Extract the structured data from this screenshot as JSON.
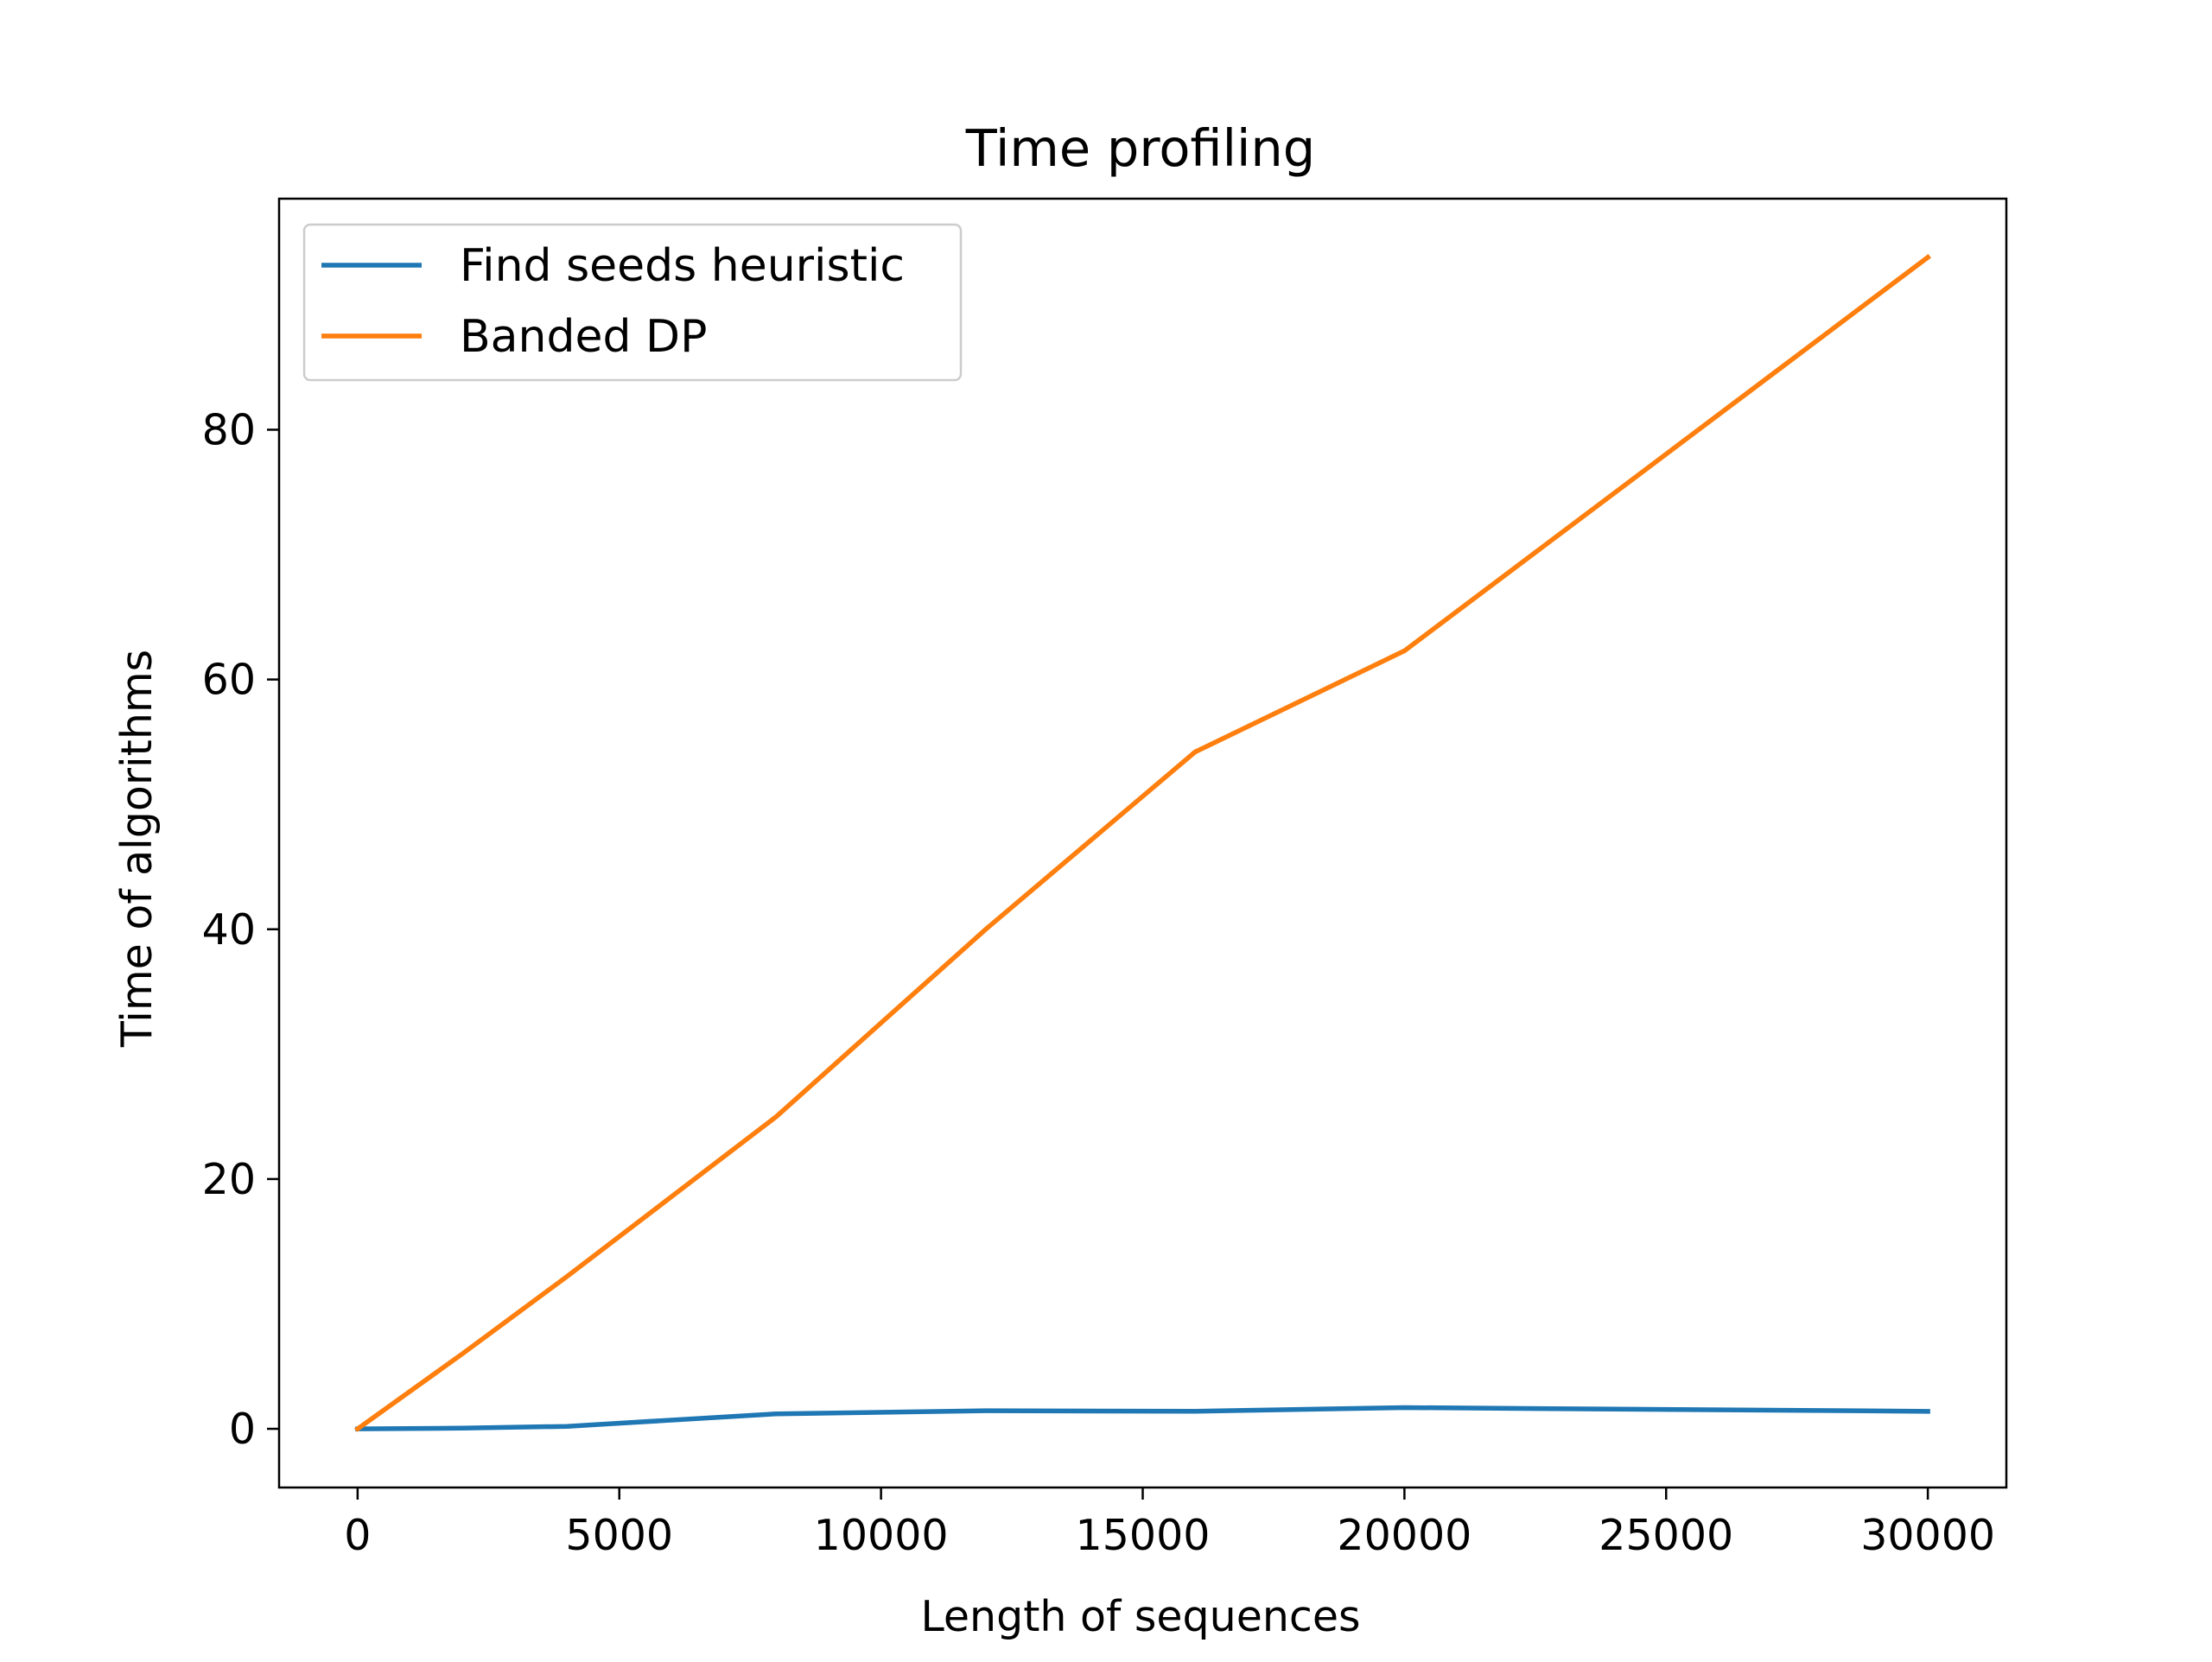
{
  "chart_data": {
    "type": "line",
    "title": "Time profiling",
    "xlabel": "Length of sequences",
    "ylabel": "Time of algorithms",
    "xlim": [
      -1500,
      31500
    ],
    "ylim": [
      -4.7,
      98.5
    ],
    "x_ticks": [
      0,
      5000,
      10000,
      15000,
      20000,
      25000,
      30000
    ],
    "x_tick_labels": [
      "0",
      "5000",
      "10000",
      "15000",
      "20000",
      "25000",
      "30000"
    ],
    "y_ticks": [
      0,
      20,
      40,
      60,
      80
    ],
    "y_tick_labels": [
      "0",
      "20",
      "40",
      "60",
      "80"
    ],
    "grid": false,
    "legend_position": "upper-left",
    "x": [
      0,
      2000,
      4000,
      8000,
      12000,
      16000,
      20000,
      30000
    ],
    "series": [
      {
        "name": "Find seeds heuristic",
        "color": "#1f77b4",
        "values": [
          0.0,
          0.05,
          0.2,
          1.2,
          1.45,
          1.4,
          1.7,
          1.4
        ]
      },
      {
        "name": "Banded DP",
        "color": "#ff7f0e",
        "values": [
          0.0,
          6.0,
          12.2,
          25.0,
          40.0,
          54.2,
          62.3,
          93.8
        ]
      }
    ]
  }
}
